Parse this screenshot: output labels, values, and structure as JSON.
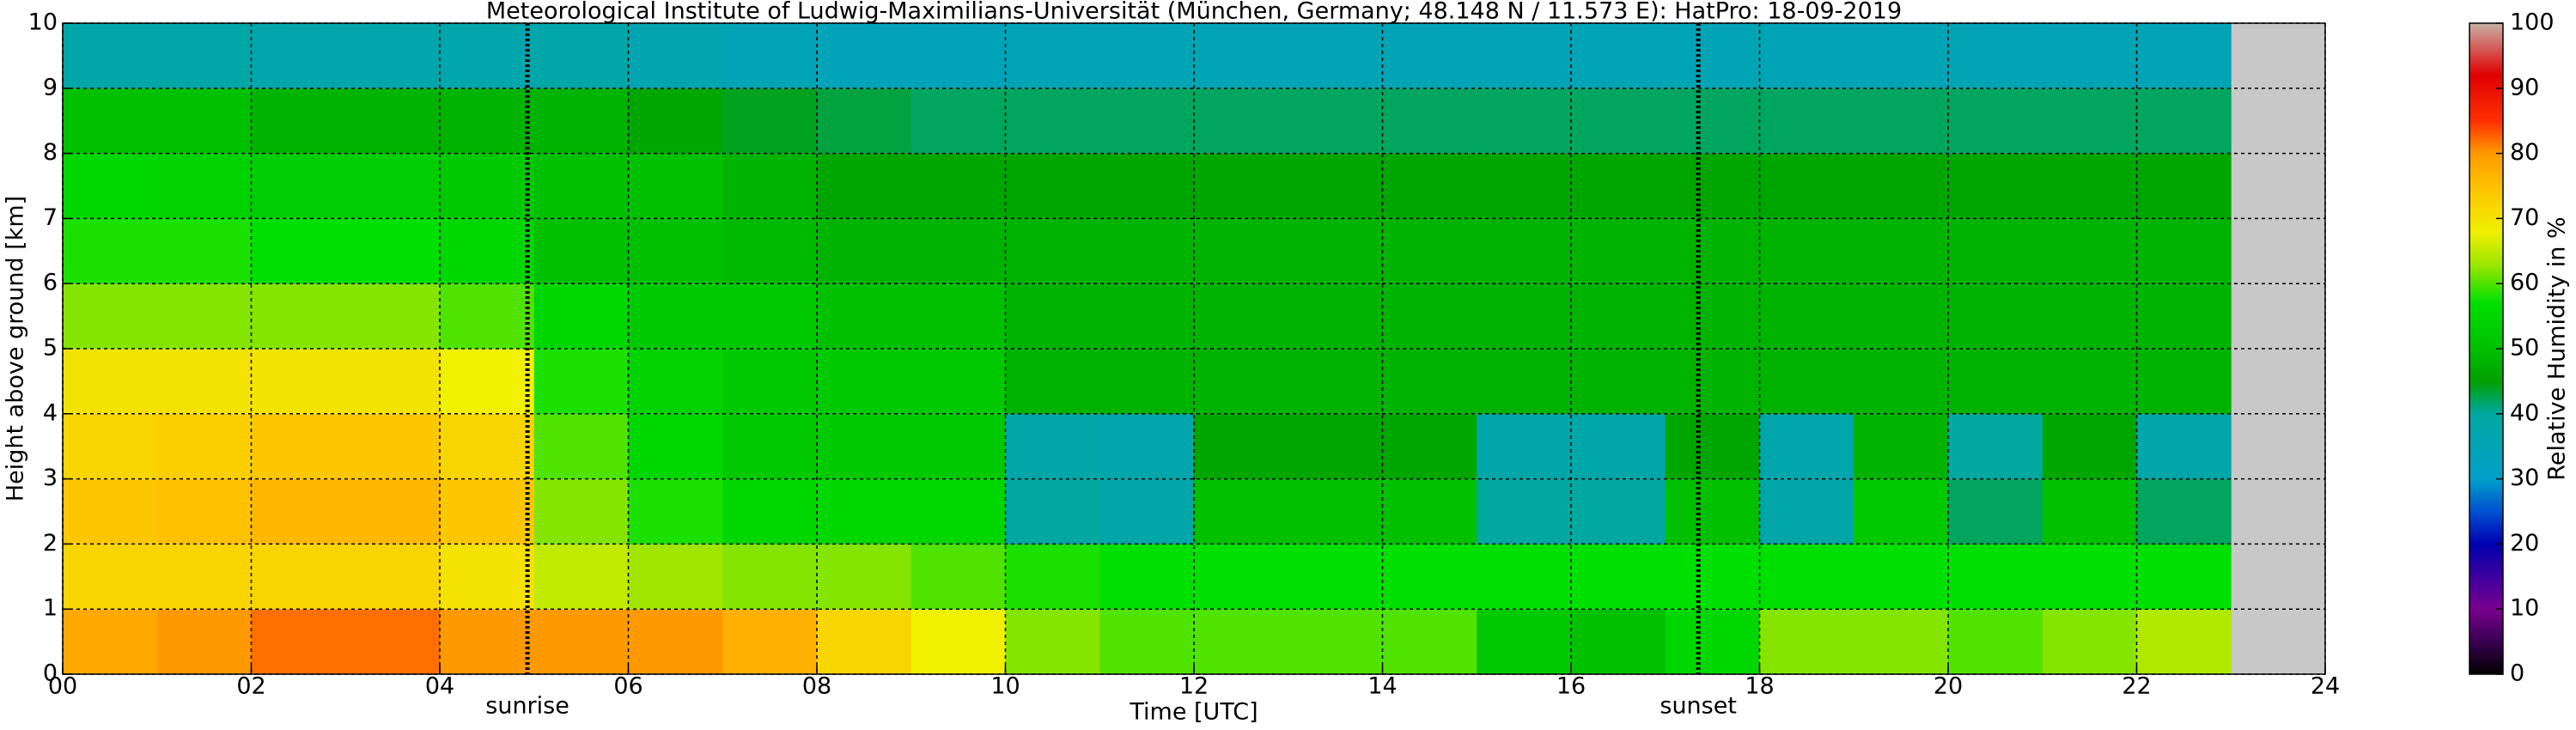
{
  "chart_data": {
    "type": "heatmap",
    "title": "Meteorological Institute of Ludwig-Maximilians-Universität (München, Germany; 48.148 N / 11.573 E):    HatPro: 18-09-2019",
    "xlabel": "Time [UTC]",
    "ylabel": "Height above ground [km]",
    "colorbar_label": "Relative Humidity in %",
    "xlim": [
      0,
      24
    ],
    "ylim": [
      0,
      10
    ],
    "clim": [
      0,
      100
    ],
    "xticks": [
      {
        "value": 0,
        "label": "00"
      },
      {
        "value": 2,
        "label": "02"
      },
      {
        "value": 4,
        "label": "04"
      },
      {
        "value": 6,
        "label": "06"
      },
      {
        "value": 8,
        "label": "08"
      },
      10,
      12,
      14,
      16,
      18,
      20,
      22,
      24
    ],
    "yticks": [
      0,
      1,
      2,
      3,
      4,
      5,
      6,
      7,
      8,
      9,
      10
    ],
    "cticks": [
      0,
      10,
      20,
      30,
      40,
      50,
      60,
      70,
      80,
      90,
      100
    ],
    "grid": true,
    "colorscale": [
      [
        0,
        "#000000"
      ],
      [
        5,
        "#3a0050"
      ],
      [
        10,
        "#780090"
      ],
      [
        20,
        "#0000b0"
      ],
      [
        25,
        "#0050d0"
      ],
      [
        30,
        "#00a0c8"
      ],
      [
        40,
        "#00a8a0"
      ],
      [
        45,
        "#00a000"
      ],
      [
        50,
        "#00c000"
      ],
      [
        57,
        "#00e000"
      ],
      [
        63,
        "#a0e600"
      ],
      [
        68,
        "#f0f000"
      ],
      [
        75,
        "#ffc000"
      ],
      [
        80,
        "#ff9900"
      ],
      [
        85,
        "#ff3000"
      ],
      [
        92,
        "#e00000"
      ],
      [
        100,
        "#c8b0a8"
      ]
    ],
    "x": [
      0,
      1,
      2,
      3,
      4,
      5,
      6,
      7,
      8,
      9,
      10,
      11,
      12,
      13,
      14,
      15,
      16,
      17,
      18,
      19,
      20,
      21,
      22
    ],
    "y": [
      0,
      1,
      2,
      3,
      4,
      5,
      6,
      7,
      8,
      9
    ],
    "z": [
      [
        78,
        80,
        82,
        82,
        80,
        80,
        80,
        77,
        72,
        68,
        62,
        60,
        60,
        60,
        60,
        52,
        50,
        55,
        62,
        62,
        60,
        62,
        64
      ],
      [
        72,
        72,
        72,
        72,
        70,
        65,
        63,
        62,
        62,
        60,
        58,
        57,
        57,
        57,
        57,
        57,
        57,
        57,
        57,
        57,
        57,
        57,
        57
      ],
      [
        74,
        75,
        76,
        76,
        74,
        62,
        58,
        55,
        55,
        55,
        40,
        38,
        50,
        50,
        50,
        40,
        40,
        50,
        38,
        52,
        42,
        50,
        42
      ],
      [
        72,
        73,
        74,
        74,
        72,
        60,
        55,
        52,
        52,
        52,
        38,
        37,
        46,
        46,
        46,
        38,
        38,
        46,
        37,
        48,
        40,
        46,
        38
      ],
      [
        70,
        70,
        70,
        70,
        68,
        58,
        54,
        52,
        52,
        52,
        48,
        48,
        48,
        48,
        48,
        48,
        48,
        48,
        48,
        48,
        48,
        48,
        48
      ],
      [
        62,
        62,
        62,
        62,
        60,
        55,
        52,
        52,
        50,
        50,
        48,
        48,
        48,
        48,
        48,
        48,
        48,
        48,
        48,
        48,
        48,
        48,
        48
      ],
      [
        58,
        58,
        57,
        57,
        55,
        50,
        50,
        49,
        48,
        48,
        48,
        48,
        48,
        48,
        48,
        48,
        48,
        48,
        48,
        48,
        48,
        48,
        48
      ],
      [
        55,
        54,
        53,
        53,
        52,
        50,
        50,
        48,
        46,
        46,
        46,
        46,
        46,
        46,
        46,
        46,
        46,
        46,
        46,
        46,
        46,
        46,
        46
      ],
      [
        50,
        50,
        48,
        48,
        48,
        48,
        46,
        44,
        43,
        42,
        42,
        42,
        42,
        42,
        42,
        42,
        42,
        42,
        42,
        42,
        42,
        42,
        42
      ],
      [
        38,
        38,
        37,
        37,
        37,
        38,
        36,
        35,
        34,
        34,
        35,
        35,
        35,
        35,
        35,
        35,
        35,
        35,
        35,
        35,
        35,
        35,
        35
      ]
    ],
    "vlines": [
      {
        "x": 4.93,
        "label": "sunrise"
      },
      {
        "x": 17.35,
        "label": "sunset"
      }
    ]
  }
}
